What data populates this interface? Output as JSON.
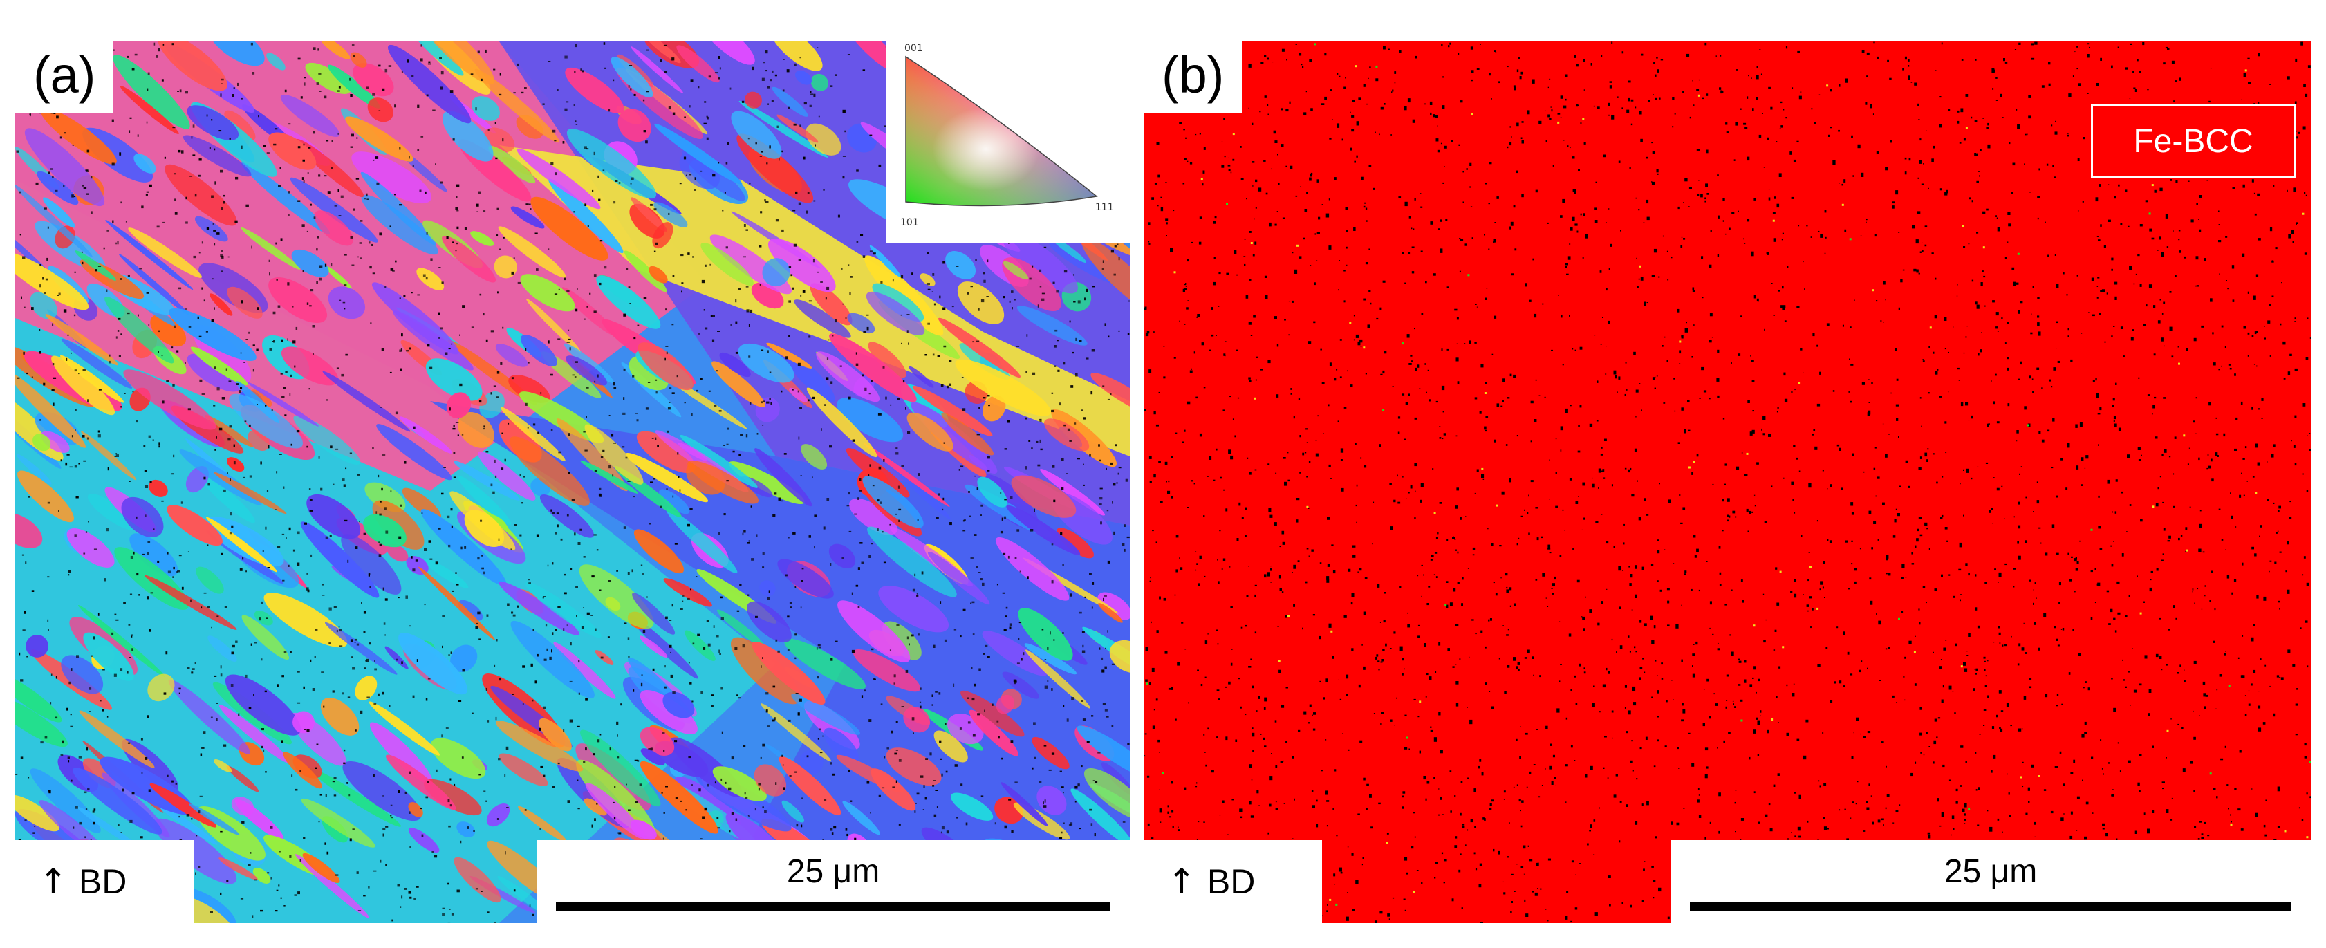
{
  "panels": {
    "a": {
      "label": "(a)",
      "build_direction": "BD",
      "scale_bar": "25 μm",
      "ipf_legend": {
        "top": "001",
        "bottom_left": "101",
        "bottom_right": "111"
      }
    },
    "b": {
      "label": "(b)",
      "build_direction": "BD",
      "scale_bar": "25 μm",
      "phase": "Fe-BCC",
      "phase_color": "#ff0000"
    }
  },
  "icons": {
    "build_direction_arrow": "up-arrow-icon"
  },
  "colors": {
    "background": "#ffffff",
    "boundary": "#000000",
    "fe_bcc": "#ff0000"
  }
}
